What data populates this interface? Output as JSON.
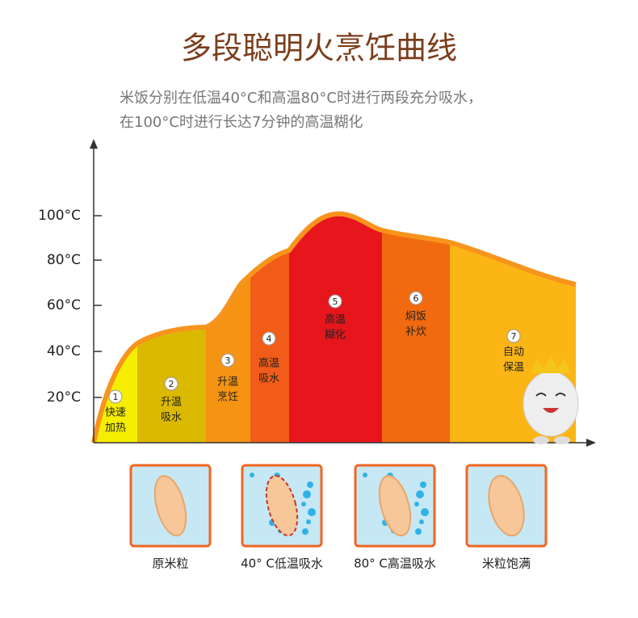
{
  "header": {
    "title": "多段聪明火烹饪曲线",
    "subtitle": [
      "米饭分别在低温40°C和高温80°C时进行两段充分吸水，",
      "在100°C时进行长达7分钟的高温糊化"
    ]
  },
  "axis": {
    "labels": [
      "100°C",
      "80°C",
      "60°C",
      "40°C",
      "20°C"
    ]
  },
  "stages": [
    {
      "number": "1",
      "lines": [
        "快速",
        "加热"
      ]
    },
    {
      "number": "2",
      "lines": [
        "升温",
        "吸水"
      ]
    },
    {
      "number": "3",
      "lines": [
        "升温",
        "烹饪"
      ]
    },
    {
      "number": "4",
      "lines": [
        "高温",
        "吸水"
      ]
    },
    {
      "number": "5",
      "lines": [
        "高温",
        "糊化"
      ]
    },
    {
      "number": "6",
      "lines": [
        "焖饭",
        "补炊"
      ]
    },
    {
      "number": "7",
      "lines": [
        "自动",
        "保温"
      ]
    }
  ],
  "rice": [
    "原米粒",
    "40° C低温吸水",
    "80° C高温吸水",
    "米粒饱满"
  ]
}
